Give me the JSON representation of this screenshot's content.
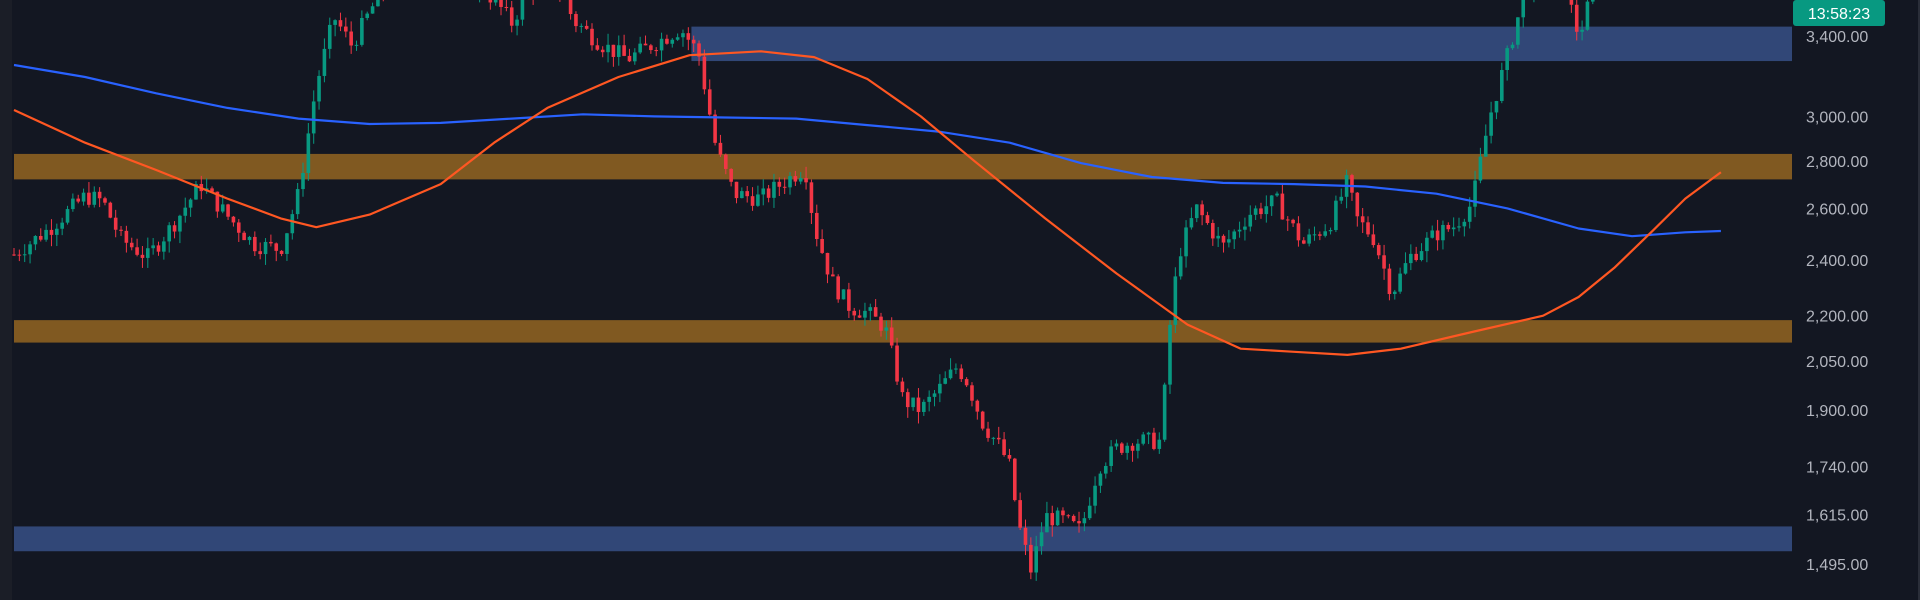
{
  "chart_data": {
    "type": "candlestick",
    "title": "",
    "xlabel": "",
    "ylabel": "",
    "y_scale": "log",
    "ylim": [
      1440,
      3720
    ],
    "grid": false,
    "price_axis": {
      "position": "right",
      "ticks": [
        "3,400.00",
        "3,000.00",
        "2,800.00",
        "2,600.00",
        "2,400.00",
        "2,200.00",
        "2,050.00",
        "1,900.00",
        "1,740.00",
        "1,615.00",
        "1,495.00"
      ],
      "tick_values": [
        3400,
        3000,
        2800,
        2600,
        2400,
        2200,
        2050,
        1900,
        1740,
        1615,
        1495
      ]
    },
    "countdown": {
      "text": "13:58:23",
      "color": "#089981"
    },
    "colors": {
      "background": "#131722",
      "bull": "#089981",
      "bear": "#f23645",
      "ma_long": "#2962ff",
      "ma_short": "#ff5722",
      "zone_supply": "#3d5a99",
      "zone_demand": "#9c6a22"
    },
    "zones": [
      {
        "kind": "supply",
        "color": "#3d5a99",
        "y_low": 3270,
        "y_high": 3450,
        "x_start": 0.381
      },
      {
        "kind": "resistance",
        "color": "#9c6a22",
        "y_low": 2720,
        "y_high": 2830,
        "x_start": 0.0
      },
      {
        "kind": "support",
        "color": "#9c6a22",
        "y_low": 2110,
        "y_high": 2185,
        "x_start": 0.0
      },
      {
        "kind": "demand",
        "color": "#3d5a99",
        "y_low": 1525,
        "y_high": 1585,
        "x_start": 0.0
      }
    ],
    "series": [
      {
        "kind": "ma_long",
        "color": "#2962ff",
        "points": [
          [
            0,
            3250
          ],
          [
            0.04,
            3190
          ],
          [
            0.08,
            3110
          ],
          [
            0.12,
            3040
          ],
          [
            0.16,
            2990
          ],
          [
            0.2,
            2965
          ],
          [
            0.24,
            2970
          ],
          [
            0.28,
            2990
          ],
          [
            0.32,
            3010
          ],
          [
            0.36,
            3000
          ],
          [
            0.4,
            2995
          ],
          [
            0.44,
            2990
          ],
          [
            0.48,
            2960
          ],
          [
            0.52,
            2930
          ],
          [
            0.56,
            2880
          ],
          [
            0.6,
            2790
          ],
          [
            0.64,
            2730
          ],
          [
            0.68,
            2705
          ],
          [
            0.72,
            2700
          ],
          [
            0.76,
            2690
          ],
          [
            0.8,
            2660
          ],
          [
            0.84,
            2600
          ],
          [
            0.88,
            2520
          ],
          [
            0.91,
            2490
          ],
          [
            0.94,
            2505
          ],
          [
            0.96,
            2510
          ]
        ]
      },
      {
        "kind": "ma_short",
        "color": "#ff5722",
        "points": [
          [
            0,
            3030
          ],
          [
            0.04,
            2880
          ],
          [
            0.08,
            2760
          ],
          [
            0.12,
            2640
          ],
          [
            0.15,
            2560
          ],
          [
            0.17,
            2525
          ],
          [
            0.2,
            2575
          ],
          [
            0.24,
            2700
          ],
          [
            0.27,
            2880
          ],
          [
            0.3,
            3040
          ],
          [
            0.34,
            3190
          ],
          [
            0.38,
            3300
          ],
          [
            0.42,
            3320
          ],
          [
            0.45,
            3290
          ],
          [
            0.48,
            3180
          ],
          [
            0.51,
            3000
          ],
          [
            0.54,
            2800
          ],
          [
            0.58,
            2560
          ],
          [
            0.62,
            2350
          ],
          [
            0.66,
            2170
          ],
          [
            0.69,
            2090
          ],
          [
            0.72,
            2080
          ],
          [
            0.75,
            2070
          ],
          [
            0.78,
            2090
          ],
          [
            0.82,
            2145
          ],
          [
            0.86,
            2200
          ],
          [
            0.88,
            2265
          ],
          [
            0.9,
            2370
          ],
          [
            0.92,
            2500
          ],
          [
            0.94,
            2640
          ],
          [
            0.96,
            2750
          ]
        ]
      }
    ],
    "price_path": [
      [
        0,
        2420
      ],
      [
        0.02,
        2520
      ],
      [
        0.04,
        2650
      ],
      [
        0.05,
        2630
      ],
      [
        0.06,
        2480
      ],
      [
        0.075,
        2410
      ],
      [
        0.09,
        2540
      ],
      [
        0.105,
        2700
      ],
      [
        0.12,
        2570
      ],
      [
        0.135,
        2460
      ],
      [
        0.15,
        2440
      ],
      [
        0.16,
        2660
      ],
      [
        0.17,
        3150
      ],
      [
        0.18,
        3500
      ],
      [
        0.19,
        3350
      ],
      [
        0.205,
        3620
      ],
      [
        0.22,
        3750
      ],
      [
        0.24,
        3700
      ],
      [
        0.255,
        3720
      ],
      [
        0.27,
        3600
      ],
      [
        0.28,
        3470
      ],
      [
        0.29,
        3660
      ],
      [
        0.305,
        3700
      ],
      [
        0.315,
        3480
      ],
      [
        0.33,
        3360
      ],
      [
        0.345,
        3280
      ],
      [
        0.36,
        3360
      ],
      [
        0.375,
        3440
      ],
      [
        0.385,
        3310
      ],
      [
        0.395,
        2850
      ],
      [
        0.405,
        2660
      ],
      [
        0.42,
        2640
      ],
      [
        0.435,
        2720
      ],
      [
        0.445,
        2770
      ],
      [
        0.45,
        2530
      ],
      [
        0.46,
        2320
      ],
      [
        0.47,
        2230
      ],
      [
        0.48,
        2210
      ],
      [
        0.49,
        2160
      ],
      [
        0.5,
        1930
      ],
      [
        0.51,
        1900
      ],
      [
        0.52,
        1960
      ],
      [
        0.53,
        2030
      ],
      [
        0.535,
        2000
      ],
      [
        0.545,
        1860
      ],
      [
        0.555,
        1790
      ],
      [
        0.56,
        1740
      ],
      [
        0.565,
        1590
      ],
      [
        0.572,
        1480
      ],
      [
        0.58,
        1610
      ],
      [
        0.59,
        1600
      ],
      [
        0.6,
        1575
      ],
      [
        0.61,
        1740
      ],
      [
        0.62,
        1790
      ],
      [
        0.63,
        1810
      ],
      [
        0.645,
        1810
      ],
      [
        0.65,
        2160
      ],
      [
        0.655,
        2420
      ],
      [
        0.665,
        2600
      ],
      [
        0.68,
        2450
      ],
      [
        0.695,
        2580
      ],
      [
        0.71,
        2630
      ],
      [
        0.725,
        2460
      ],
      [
        0.74,
        2540
      ],
      [
        0.75,
        2710
      ],
      [
        0.755,
        2560
      ],
      [
        0.765,
        2480
      ],
      [
        0.775,
        2280
      ],
      [
        0.785,
        2410
      ],
      [
        0.8,
        2500
      ],
      [
        0.81,
        2530
      ],
      [
        0.82,
        2620
      ],
      [
        0.83,
        3000
      ],
      [
        0.84,
        3300
      ],
      [
        0.85,
        3650
      ],
      [
        0.86,
        3800
      ],
      [
        0.87,
        3760
      ],
      [
        0.88,
        3400
      ],
      [
        0.89,
        3700
      ],
      [
        0.9,
        3760
      ]
    ]
  }
}
